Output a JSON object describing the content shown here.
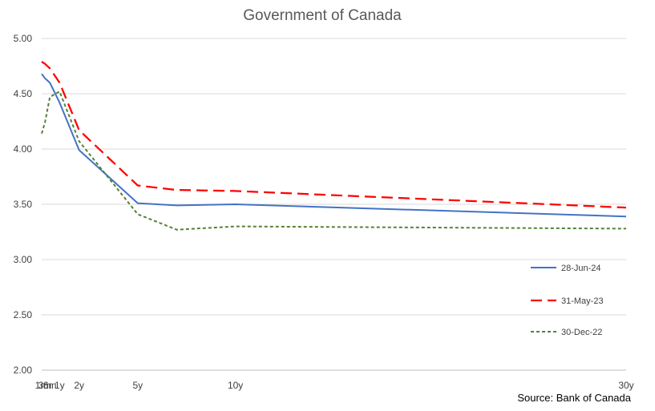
{
  "chart_data": {
    "type": "line",
    "title": "Government of Canada",
    "source": "Source: Bank of Canada",
    "xlabel": "",
    "ylabel": "",
    "ylim": [
      2.0,
      5.0
    ],
    "y_ticks": [
      "2.00",
      "2.50",
      "3.00",
      "3.50",
      "4.00",
      "4.50",
      "5.00"
    ],
    "x_positions": [
      1,
      3,
      6,
      12,
      24,
      60,
      84,
      120,
      360
    ],
    "x_tick_labels": [
      {
        "x": 1,
        "label": "1m"
      },
      {
        "x": 3,
        "label": "3m"
      },
      {
        "x": 6,
        "label": "6m"
      },
      {
        "x": 12,
        "label": "1y"
      },
      {
        "x": 24,
        "label": "2y"
      },
      {
        "x": 60,
        "label": "5y"
      },
      {
        "x": 120,
        "label": "10y"
      },
      {
        "x": 360,
        "label": "30y"
      }
    ],
    "grid": true,
    "legend_position": "right",
    "series": [
      {
        "name": "28-Jun-24",
        "color": "#4472C4",
        "dash": "solid",
        "values": [
          4.68,
          4.64,
          4.6,
          4.42,
          3.99,
          3.51,
          3.49,
          3.5,
          3.39
        ]
      },
      {
        "name": "31-May-23",
        "color": "#FF0000",
        "dash": "long-dash",
        "values": [
          4.79,
          4.77,
          4.73,
          4.6,
          4.17,
          3.67,
          3.63,
          3.62,
          3.47
        ]
      },
      {
        "name": "30-Dec-22",
        "color": "#548235",
        "dash": "short-dash",
        "values": [
          4.14,
          4.24,
          4.47,
          4.52,
          4.07,
          3.41,
          3.27,
          3.3,
          3.28
        ]
      }
    ]
  }
}
